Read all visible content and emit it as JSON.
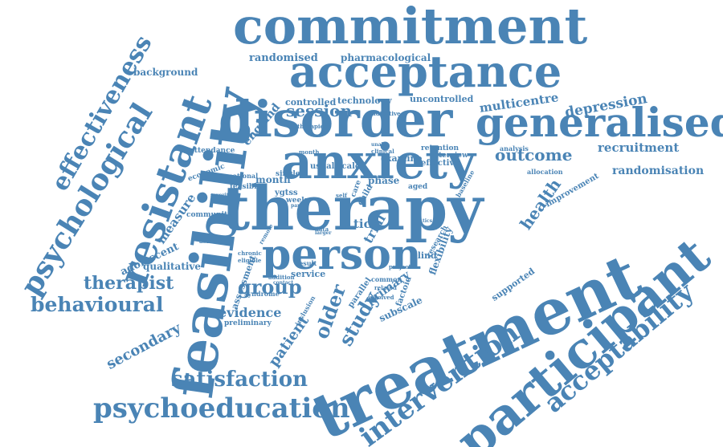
{
  "color": "#4a84b5",
  "words": [
    "commitment",
    "acceptance",
    "disorder",
    "anxiety",
    "therapy",
    "treatment",
    "feasibility",
    "participant",
    "generalised",
    "person",
    "resistant",
    "psychological",
    "effectiveness",
    "acceptability",
    "intervention",
    "psychoeducation",
    "satisfaction",
    "behavioural",
    "therapist",
    "group",
    "study",
    "older",
    "patient",
    "secondary",
    "depression",
    "outcome",
    "recruitment",
    "randomisation",
    "health",
    "session",
    "multicentre",
    "randomised",
    "pharmacological",
    "background",
    "controlled",
    "technology",
    "uncontrolled",
    "england",
    "measure",
    "adolescent",
    "qualitative",
    "evidence",
    "month",
    "phase",
    "primary",
    "assessment",
    "service",
    "preliminary",
    "syndrome",
    "community",
    "attendance",
    "economic",
    "national",
    "feasible",
    "single",
    "usual scale",
    "examine",
    "retention",
    "effective",
    "interview",
    "analysis",
    "allocation",
    "improvement",
    "baseline",
    "aged",
    "care",
    "child",
    "tic",
    "trial",
    "parallel",
    "research",
    "blind",
    "flexibility",
    "factoid",
    "supported",
    "subscale",
    "common",
    "project",
    "related",
    "involved",
    "inclusion",
    "contact",
    "addition",
    "result",
    "chronic",
    "eligible",
    "remote",
    "assessor",
    "severity",
    "therapies",
    "indicative",
    "clinical",
    "unable",
    "week",
    "parent",
    "ygtss",
    "data",
    "self",
    "tics",
    "larger",
    "month"
  ]
}
